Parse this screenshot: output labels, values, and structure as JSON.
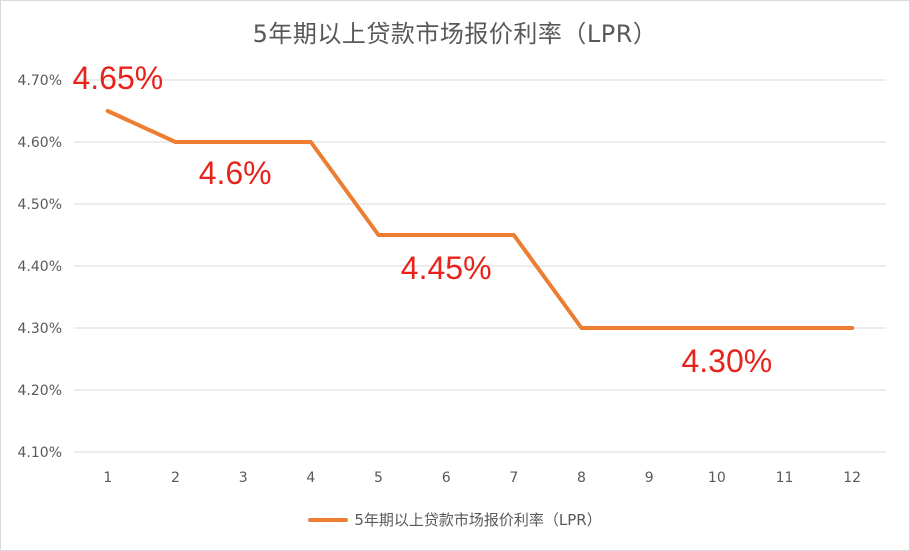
{
  "chart_data": {
    "type": "line",
    "title": "5年期以上贷款市场报价利率（LPR）",
    "x": [
      "1",
      "2",
      "3",
      "4",
      "5",
      "6",
      "7",
      "8",
      "9",
      "10",
      "11",
      "12"
    ],
    "series": [
      {
        "name": "5年期以上贷款市场报价利率（LPR）",
        "values": [
          4.65,
          4.6,
          4.6,
          4.6,
          4.45,
          4.45,
          4.45,
          4.3,
          4.3,
          4.3,
          4.3,
          4.3
        ],
        "color": "#ed7d31"
      }
    ],
    "ylim": [
      4.1,
      4.7
    ],
    "yticks": [
      "4.10%",
      "4.20%",
      "4.30%",
      "4.40%",
      "4.50%",
      "4.60%",
      "4.70%"
    ],
    "grid": true,
    "legend": "bottom",
    "annotations": [
      {
        "text": "4.65%",
        "x": "1",
        "y": 4.65
      },
      {
        "text": "4.6%",
        "x": "3",
        "y": 4.6
      },
      {
        "text": "4.45%",
        "x": "6",
        "y": 4.45
      },
      {
        "text": "4.30%",
        "x": "10",
        "y": 4.3
      }
    ],
    "colors": {
      "line": "#ed7d31",
      "annotation": "#e8231c",
      "grid": "#d9d9d9",
      "text": "#595959"
    }
  }
}
